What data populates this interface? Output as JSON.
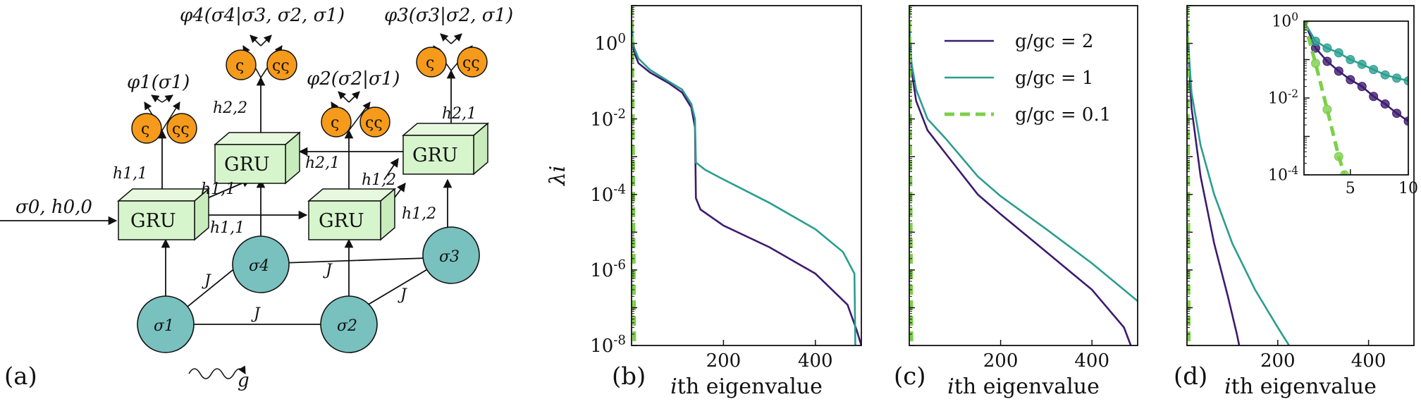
{
  "panel_tags": [
    "(a)",
    "(b)",
    "(c)",
    "(d)"
  ],
  "diagram": {
    "input_label": "σ0, h0,0",
    "gru_label": "GRU",
    "sites": [
      "σ1",
      "σ2",
      "σ3",
      "σ4"
    ],
    "coupling": "J",
    "field": "g",
    "outputs": [
      "φ1(σ1)",
      "φ2(σ2|σ1)",
      "φ3(σ3|σ2, σ1)",
      "φ4(σ4|σ3, σ2, σ1)"
    ],
    "hidden": [
      "h1,1",
      "h1,1",
      "h1,1",
      "h1,2",
      "h1,2",
      "h2,1",
      "h2,1",
      "h2,2"
    ],
    "spin_up_glyph": "ς",
    "spin_down_glyph": "ςς",
    "colors": {
      "spin_node": "#78c1bf",
      "output_node": "#f59a1b",
      "gru_box": "#d7f5cc"
    }
  },
  "chart_data": [
    {
      "panel": "(b)",
      "type": "line",
      "ylabel": "λi",
      "xlabel": "ith eigenvalue",
      "yscale": "log",
      "ylim": [
        1e-08,
        10
      ],
      "xlim": [
        0,
        500
      ],
      "xticks": [
        200,
        400
      ],
      "yticks": [
        "10^0",
        "10^-2",
        "10^-4",
        "10^-6",
        "10^-8"
      ],
      "series": [
        {
          "name": "g/gc = 2",
          "color": "#3d1a6e",
          "style": "solid",
          "points": [
            [
              0,
              3
            ],
            [
              5,
              0.6
            ],
            [
              15,
              0.3
            ],
            [
              40,
              0.17
            ],
            [
              80,
              0.09
            ],
            [
              110,
              0.05
            ],
            [
              130,
              0.02
            ],
            [
              138,
              0.006
            ],
            [
              140,
              8e-05
            ],
            [
              150,
              4e-05
            ],
            [
              200,
              1.5e-05
            ],
            [
              300,
              4e-06
            ],
            [
              400,
              8e-07
            ],
            [
              470,
              1.2e-07
            ],
            [
              490,
              2.5e-08
            ],
            [
              500,
              1e-08
            ]
          ]
        },
        {
          "name": "g/gc = 1",
          "color": "#2a9d8f",
          "style": "solid",
          "points": [
            [
              0,
              3
            ],
            [
              5,
              0.8
            ],
            [
              15,
              0.4
            ],
            [
              40,
              0.2
            ],
            [
              80,
              0.1
            ],
            [
              110,
              0.06
            ],
            [
              130,
              0.025
            ],
            [
              138,
              0.01
            ],
            [
              140,
              0.0007
            ],
            [
              160,
              0.00045
            ],
            [
              200,
              0.00025
            ],
            [
              300,
              6e-05
            ],
            [
              400,
              1.2e-05
            ],
            [
              460,
              3e-06
            ],
            [
              485,
              8e-07
            ],
            [
              487,
              1e-08
            ]
          ]
        },
        {
          "name": "g/gc = 0.1",
          "color": "#7ccf4a",
          "style": "dashed",
          "points": [
            [
              0,
              10
            ],
            [
              1,
              3
            ],
            [
              2,
              0.3
            ],
            [
              3,
              0.01
            ],
            [
              4,
              0.0001
            ],
            [
              5,
              1e-06
            ],
            [
              6,
              1e-08
            ]
          ]
        }
      ]
    },
    {
      "panel": "(c)",
      "type": "line",
      "xlabel": "ith eigenvalue",
      "yscale": "log",
      "ylim": [
        1e-08,
        10
      ],
      "xlim": [
        0,
        500
      ],
      "xticks": [
        200,
        400
      ],
      "legend": {
        "position": "top-right",
        "entries": [
          "g/gc = 2",
          "g/gc = 1",
          "g/gc = 0.1"
        ]
      },
      "series": [
        {
          "name": "g/gc = 2",
          "color": "#3d1a6e",
          "style": "solid",
          "points": [
            [
              0,
              3
            ],
            [
              5,
              0.2
            ],
            [
              15,
              0.03
            ],
            [
              40,
              0.005
            ],
            [
              80,
              0.0012
            ],
            [
              150,
              0.0001
            ],
            [
              200,
              3e-05
            ],
            [
              300,
              3e-06
            ],
            [
              400,
              3e-07
            ],
            [
              470,
              3e-08
            ],
            [
              485,
              1e-08
            ]
          ]
        },
        {
          "name": "g/gc = 1",
          "color": "#2a9d8f",
          "style": "solid",
          "points": [
            [
              0,
              3
            ],
            [
              5,
              0.3
            ],
            [
              15,
              0.06
            ],
            [
              40,
              0.01
            ],
            [
              80,
              0.003
            ],
            [
              150,
              0.0003
            ],
            [
              200,
              9e-05
            ],
            [
              300,
              1.2e-05
            ],
            [
              400,
              1.5e-06
            ],
            [
              500,
              1.5e-07
            ]
          ]
        },
        {
          "name": "g/gc = 0.1",
          "color": "#7ccf4a",
          "style": "dashed",
          "points": [
            [
              0,
              10
            ],
            [
              1,
              1
            ],
            [
              2,
              0.01
            ],
            [
              3,
              0.0001
            ],
            [
              4,
              1e-06
            ],
            [
              5,
              1e-08
            ]
          ]
        }
      ]
    },
    {
      "panel": "(d)",
      "type": "line",
      "xlabel": "ith eigenvalue",
      "yscale": "log",
      "ylim": [
        1e-08,
        10
      ],
      "xlim": [
        0,
        500
      ],
      "xticks": [
        200,
        400
      ],
      "series": [
        {
          "name": "g/gc = 2",
          "color": "#3d1a6e",
          "style": "solid",
          "points": [
            [
              0,
              3
            ],
            [
              10,
              0.02
            ],
            [
              30,
              0.0003
            ],
            [
              60,
              5e-06
            ],
            [
              90,
              2e-07
            ],
            [
              110,
              2e-08
            ],
            [
              115,
              1e-08
            ]
          ]
        },
        {
          "name": "g/gc = 1",
          "color": "#2a9d8f",
          "style": "solid",
          "points": [
            [
              0,
              3
            ],
            [
              10,
              0.05
            ],
            [
              30,
              0.002
            ],
            [
              60,
              0.0001
            ],
            [
              100,
              5e-06
            ],
            [
              150,
              3e-07
            ],
            [
              200,
              3e-08
            ],
            [
              225,
              1e-08
            ]
          ]
        },
        {
          "name": "g/gc = 0.1",
          "color": "#7ccf4a",
          "style": "dashed",
          "points": [
            [
              0,
              10
            ],
            [
              1,
              1
            ],
            [
              2,
              0.01
            ],
            [
              3,
              0.0001
            ],
            [
              4,
              1e-08
            ]
          ]
        }
      ],
      "inset": {
        "yscale": "log",
        "ylim": [
          0.0001,
          1
        ],
        "xlim": [
          1,
          10
        ],
        "xticks": [
          5,
          10
        ],
        "yticks": [
          "10^0",
          "10^-2",
          "10^-4"
        ],
        "series": [
          {
            "name": "g/gc = 2",
            "color": "#3d1a6e",
            "style": "solid",
            "markers": true,
            "points": [
              [
                1,
                1
              ],
              [
                2,
                0.2
              ],
              [
                3,
                0.09
              ],
              [
                4,
                0.05
              ],
              [
                5,
                0.03
              ],
              [
                6,
                0.02
              ],
              [
                7,
                0.011
              ],
              [
                8,
                0.007
              ],
              [
                9,
                0.004
              ],
              [
                10,
                0.0025
              ]
            ]
          },
          {
            "name": "g/gc = 1",
            "color": "#2a9d8f",
            "style": "solid",
            "markers": true,
            "points": [
              [
                1,
                1
              ],
              [
                2,
                0.3
              ],
              [
                3,
                0.2
              ],
              [
                4,
                0.15
              ],
              [
                5,
                0.1
              ],
              [
                6,
                0.075
              ],
              [
                7,
                0.055
              ],
              [
                8,
                0.04
              ],
              [
                9,
                0.033
              ],
              [
                10,
                0.028
              ]
            ]
          },
          {
            "name": "g/gc = 0.1",
            "color": "#7ccf4a",
            "style": "dashed",
            "markers": true,
            "points": [
              [
                1,
                1
              ],
              [
                2,
                0.08
              ],
              [
                3,
                0.005
              ],
              [
                4,
                0.0003
              ],
              [
                4.5,
                0.0001
              ]
            ]
          }
        ]
      }
    }
  ]
}
